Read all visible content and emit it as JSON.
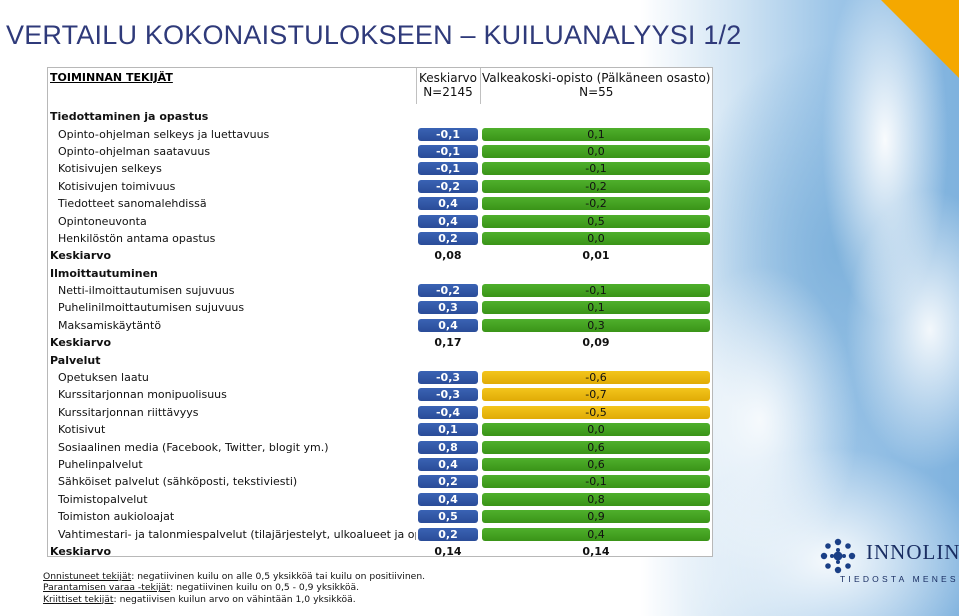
{
  "title": "VERTAILU KOKONAISTULOKSEEN – KUILUANALYYSI 1/2",
  "header": {
    "label": "TOIMINNAN TEKIJÄT",
    "col1": [
      "Keskiarvo",
      "N=2145"
    ],
    "col2": [
      "Valkeakoski-opisto (Pälkäneen osasto)",
      "N=55"
    ]
  },
  "sections": [
    {
      "title": "Tiedottaminen ja opastus",
      "rows": [
        {
          "label": "Opinto-ohjelman selkeys ja luettavuus",
          "v1": "-0,1",
          "v2": "0,1",
          "c2": "g"
        },
        {
          "label": "Opinto-ohjelman saatavuus",
          "v1": "-0,1",
          "v2": "0,0",
          "c2": "g"
        },
        {
          "label": "Kotisivujen selkeys",
          "v1": "-0,1",
          "v2": "-0,1",
          "c2": "g"
        },
        {
          "label": "Kotisivujen toimivuus",
          "v1": "-0,2",
          "v2": "-0,2",
          "c2": "g"
        },
        {
          "label": "Tiedotteet sanomalehdissä",
          "v1": "0,4",
          "v2": "-0,2",
          "c2": "g"
        },
        {
          "label": "Opintoneuvonta",
          "v1": "0,4",
          "v2": "0,5",
          "c2": "g"
        },
        {
          "label": "Henkilöstön antama opastus",
          "v1": "0,2",
          "v2": "0,0",
          "c2": "g"
        }
      ],
      "avg": {
        "label": "Keskiarvo",
        "v1": "0,08",
        "v2": "0,01"
      }
    },
    {
      "title": "Ilmoittautuminen",
      "rows": [
        {
          "label": "Netti-ilmoittautumisen sujuvuus",
          "v1": "-0,2",
          "v2": "-0,1",
          "c2": "g"
        },
        {
          "label": "Puhelinilmoittautumisen sujuvuus",
          "v1": "0,3",
          "v2": "0,1",
          "c2": "g"
        },
        {
          "label": "Maksamiskäytäntö",
          "v1": "0,4",
          "v2": "0,3",
          "c2": "g"
        }
      ],
      "avg": {
        "label": "Keskiarvo",
        "v1": "0,17",
        "v2": "0,09"
      }
    },
    {
      "title": "Palvelut",
      "rows": [
        {
          "label": "Opetuksen laatu",
          "v1": "-0,3",
          "v2": "-0,6",
          "c2": "y"
        },
        {
          "label": "Kurssitarjonnan monipuolisuus",
          "v1": "-0,3",
          "v2": "-0,7",
          "c2": "y"
        },
        {
          "label": "Kurssitarjonnan riittävyys",
          "v1": "-0,4",
          "v2": "-0,5",
          "c2": "y"
        },
        {
          "label": "Kotisivut",
          "v1": "0,1",
          "v2": "0,0",
          "c2": "g"
        },
        {
          "label": "Sosiaalinen media (Facebook, Twitter, blogit ym.)",
          "v1": "0,8",
          "v2": "0,6",
          "c2": "g"
        },
        {
          "label": "Puhelinpalvelut",
          "v1": "0,4",
          "v2": "0,6",
          "c2": "g"
        },
        {
          "label": "Sähköiset palvelut (sähköposti, tekstiviesti)",
          "v1": "0,2",
          "v2": "-0,1",
          "c2": "g"
        },
        {
          "label": "Toimistopalvelut",
          "v1": "0,4",
          "v2": "0,8",
          "c2": "g"
        },
        {
          "label": "Toimiston aukioloajat",
          "v1": "0,5",
          "v2": "0,9",
          "c2": "g"
        },
        {
          "label": "Vahtimestari- ja talonmiespalvelut (tilajärjestelyt, ulkoalueet ja opastus)",
          "v1": "0,2",
          "v2": "0,4",
          "c2": "g"
        }
      ],
      "avg": {
        "label": "Keskiarvo",
        "v1": "0,14",
        "v2": "0,14"
      }
    }
  ],
  "footer": [
    {
      "term": "Onnistuneet tekijät",
      "text": ": negatiivinen kuilu on alle 0,5 yksikköä tai kuilu on positiivinen."
    },
    {
      "term": "Parantamisen varaa -tekijät",
      "text": ": negatiivinen kuilu on 0,5 - 0,9 yksikköä."
    },
    {
      "term": "Kriittiset tekijät",
      "text": ": negatiivisen kuilun arvo on vähintään 1,0 yksikköä."
    }
  ],
  "logo": {
    "name": "INNOLINK",
    "tagline": "TIEDOSTA MENESTYS"
  },
  "colors": {
    "blue_bar": "#2f55a6",
    "green_bar": "#43a322",
    "yellow_bar": "#ebb90f",
    "title": "#2f3a7a",
    "accent": "#f5a800"
  }
}
